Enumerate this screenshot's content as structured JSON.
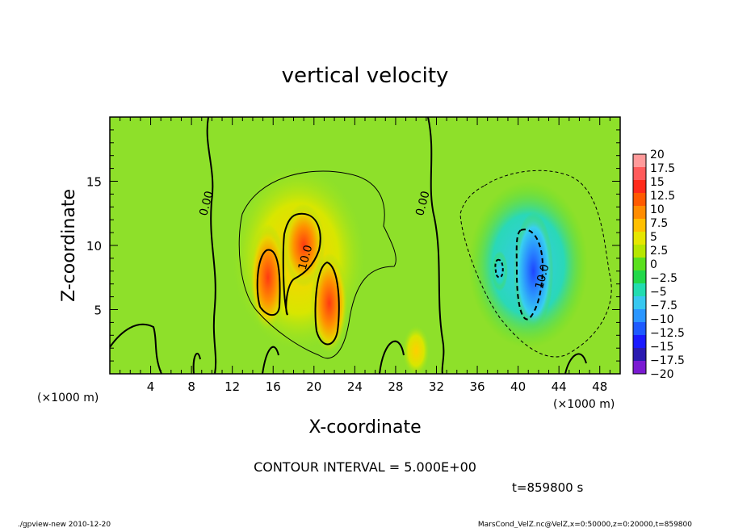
{
  "chart_data": {
    "type": "heatmap",
    "title": "vertical velocity",
    "xlabel": "X-coordinate",
    "ylabel": "Z-coordinate",
    "x_unit_label": "(×1000 m)",
    "xlim": [
      0,
      50
    ],
    "ylim": [
      0,
      20
    ],
    "x_ticks": [
      4,
      8,
      12,
      16,
      20,
      24,
      28,
      32,
      36,
      40,
      44,
      48
    ],
    "y_ticks": [
      5,
      10,
      15
    ],
    "contour_interval_label": "CONTOUR INTERVAL = 5.000E+00",
    "time_label": "t=859800 s",
    "contour_labels": [
      {
        "text": "0.00",
        "x": 9.8,
        "z": 13.2
      },
      {
        "text": "10.0",
        "x": 19.5,
        "z": 9.0
      },
      {
        "text": "0.00",
        "x": 31.0,
        "z": 13.2
      },
      {
        "text": "10.0",
        "x": 42.7,
        "z": 7.5
      }
    ],
    "colorbar": {
      "labels": [
        "20",
        "17.5",
        "15",
        "12.5",
        "10",
        "7.5",
        "5",
        "2.5",
        "0",
        "−2.5",
        "−5",
        "−7.5",
        "−10",
        "−12.5",
        "−15",
        "−17.5",
        "−20"
      ],
      "colors": [
        "#ff9a9a",
        "#ff5a5a",
        "#ff2a1a",
        "#ff5a00",
        "#ff8c00",
        "#ffbf00",
        "#e6e600",
        "#b6e600",
        "#5ae01e",
        "#22d84a",
        "#22dcb0",
        "#38c8f0",
        "#2a96ff",
        "#1e5aff",
        "#1a1aff",
        "#2a1ab0",
        "#7a1ad2"
      ]
    },
    "cells": [
      {
        "x": 15.5,
        "z": 7.5,
        "sx": 1.4,
        "sz": 3.2,
        "v": 14
      },
      {
        "x": 19.0,
        "z": 10.0,
        "sx": 1.6,
        "sz": 2.5,
        "v": 12
      },
      {
        "x": 21.5,
        "z": 5.5,
        "sx": 1.4,
        "sz": 3.0,
        "v": 13
      },
      {
        "x": 18.5,
        "z": 9.0,
        "sx": 5.0,
        "sz": 5.5,
        "v": 4
      },
      {
        "x": 30.0,
        "z": 1.8,
        "sx": 1.0,
        "sz": 1.5,
        "v": 6
      },
      {
        "x": 41.5,
        "z": 8.0,
        "sx": 1.5,
        "sz": 3.5,
        "v": -12
      },
      {
        "x": 41.0,
        "z": 8.5,
        "sx": 4.5,
        "sz": 5.0,
        "v": -5
      },
      {
        "x": 38.2,
        "z": 8.0,
        "sx": 0.6,
        "sz": 1.2,
        "v": -5
      }
    ]
  },
  "footer": {
    "left": "./gpview-new   2010-12-20",
    "right": "MarsCond_VelZ.nc@VelZ,x=0:50000,z=0:20000,t=859800"
  }
}
